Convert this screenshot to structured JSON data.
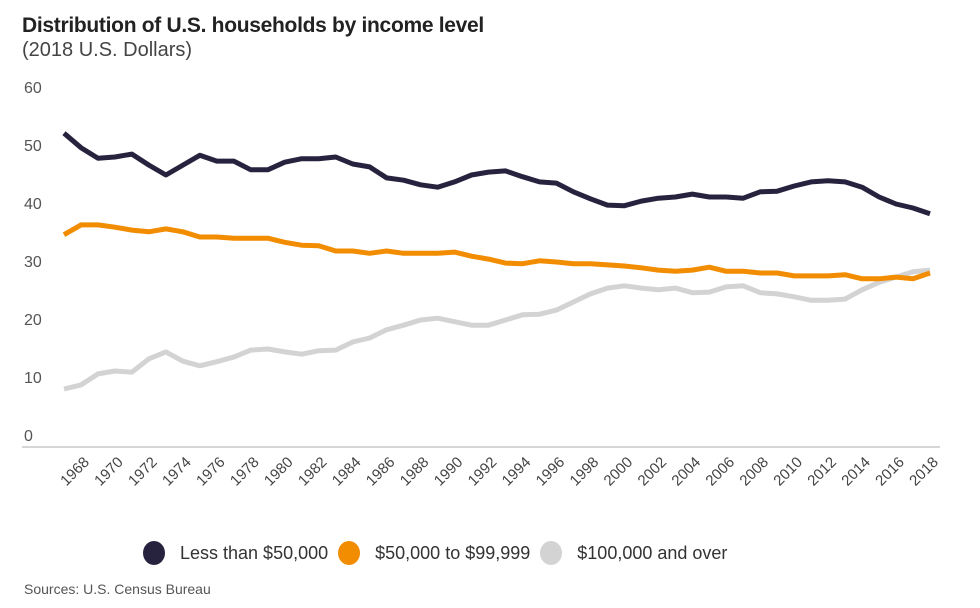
{
  "chart_data": {
    "type": "line",
    "title": "Distribution of U.S. households by income level",
    "subtitle": "(2018 U.S. Dollars)",
    "xlabel": "",
    "ylabel": "",
    "ylim": [
      0,
      60
    ],
    "yticks": [
      "0",
      "10",
      "20",
      "30",
      "40",
      "50",
      "60"
    ],
    "xlim": [
      1967,
      2018
    ],
    "xticks": [
      "1968",
      "1970",
      "1972",
      "1974",
      "1976",
      "1978",
      "1980",
      "1982",
      "1984",
      "1986",
      "1988",
      "1990",
      "1992",
      "1994",
      "1996",
      "1998",
      "2000",
      "2002",
      "2004",
      "2006",
      "2008",
      "2010",
      "2012",
      "2014",
      "2016",
      "2018"
    ],
    "grid": false,
    "legend_position": "bottom",
    "x": [
      1967,
      1968,
      1969,
      1970,
      1971,
      1972,
      1973,
      1974,
      1975,
      1976,
      1977,
      1978,
      1979,
      1980,
      1981,
      1982,
      1983,
      1984,
      1985,
      1986,
      1987,
      1988,
      1989,
      1990,
      1991,
      1992,
      1993,
      1994,
      1995,
      1996,
      1997,
      1998,
      1999,
      2000,
      2001,
      2002,
      2003,
      2004,
      2005,
      2006,
      2007,
      2008,
      2009,
      2010,
      2011,
      2012,
      2013,
      2014,
      2015,
      2016,
      2017,
      2018
    ],
    "series": [
      {
        "name": "Less than $50,000",
        "color": "#27233f",
        "values": [
          54.1,
          51.6,
          49.8,
          50.0,
          50.5,
          48.6,
          46.9,
          48.6,
          50.3,
          49.3,
          49.3,
          47.8,
          47.8,
          49.1,
          49.7,
          49.7,
          50.0,
          48.8,
          48.3,
          46.4,
          46.0,
          45.2,
          44.8,
          45.7,
          46.9,
          47.4,
          47.6,
          46.6,
          45.7,
          45.5,
          44.0,
          42.8,
          41.7,
          41.6,
          42.4,
          42.9,
          43.1,
          43.6,
          43.1,
          43.1,
          42.9,
          44.0,
          44.1,
          45.0,
          45.7,
          45.9,
          45.7,
          44.8,
          43.1,
          41.9,
          41.2,
          40.2
        ]
      },
      {
        "name": "$50,000 to $99,999",
        "color": "#f28c00",
        "values": [
          36.6,
          38.3,
          38.3,
          37.9,
          37.4,
          37.1,
          37.6,
          37.1,
          36.2,
          36.2,
          36.0,
          36.0,
          36.0,
          35.3,
          34.8,
          34.7,
          33.8,
          33.8,
          33.4,
          33.8,
          33.4,
          33.4,
          33.4,
          33.6,
          32.9,
          32.4,
          31.7,
          31.6,
          32.1,
          31.9,
          31.6,
          31.6,
          31.4,
          31.2,
          30.9,
          30.5,
          30.3,
          30.5,
          31.0,
          30.3,
          30.3,
          30.0,
          30.0,
          29.5,
          29.5,
          29.5,
          29.7,
          29.0,
          29.0,
          29.3,
          29.0,
          30.0
        ]
      },
      {
        "name": "$100,000 and over",
        "color": "#d3d3d3",
        "values": [
          10.0,
          10.7,
          12.6,
          13.1,
          12.9,
          15.2,
          16.4,
          14.8,
          14.0,
          14.7,
          15.5,
          16.7,
          16.9,
          16.4,
          16.0,
          16.6,
          16.7,
          18.1,
          18.8,
          20.2,
          21.0,
          21.9,
          22.2,
          21.6,
          21.0,
          21.0,
          21.9,
          22.8,
          22.9,
          23.6,
          25.0,
          26.4,
          27.4,
          27.8,
          27.4,
          27.1,
          27.4,
          26.6,
          26.7,
          27.6,
          27.8,
          26.6,
          26.4,
          25.9,
          25.3,
          25.3,
          25.5,
          27.1,
          28.4,
          29.3,
          30.2,
          30.5
        ]
      }
    ],
    "source": "Sources: U.S. Census Bureau"
  }
}
